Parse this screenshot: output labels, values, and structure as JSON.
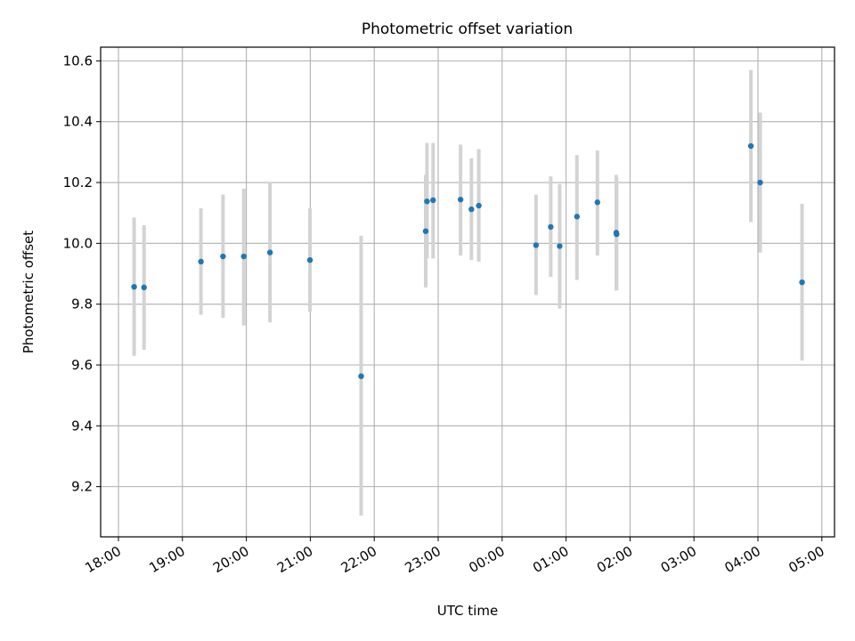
{
  "chart_data": {
    "type": "scatter",
    "title": "Photometric offset variation",
    "xlabel": "UTC time",
    "ylabel": "Photometric offset",
    "x_unit": "UTC hours after 18:00",
    "xlim": [
      -0.25,
      11.0
    ],
    "ylim": [
      9.035,
      10.645
    ],
    "grid": true,
    "x_ticks": [
      {
        "label": "18:00",
        "value": 0
      },
      {
        "label": "19:00",
        "value": 1
      },
      {
        "label": "20:00",
        "value": 2
      },
      {
        "label": "21:00",
        "value": 3
      },
      {
        "label": "22:00",
        "value": 4
      },
      {
        "label": "23:00",
        "value": 5
      },
      {
        "label": "00:00",
        "value": 6
      },
      {
        "label": "01:00",
        "value": 7
      },
      {
        "label": "02:00",
        "value": 8
      },
      {
        "label": "03:00",
        "value": 9
      },
      {
        "label": "04:00",
        "value": 10
      },
      {
        "label": "05:00",
        "value": 11
      }
    ],
    "y_ticks": [
      {
        "label": "9.2",
        "value": 9.2
      },
      {
        "label": "9.4",
        "value": 9.4
      },
      {
        "label": "9.6",
        "value": 9.6
      },
      {
        "label": "9.8",
        "value": 9.8
      },
      {
        "label": "10.0",
        "value": 10.0
      },
      {
        "label": "10.2",
        "value": 10.2
      },
      {
        "label": "10.4",
        "value": 10.4
      },
      {
        "label": "10.6",
        "value": 10.6
      }
    ],
    "point_color": "#1f77b4",
    "errorbar_color": "#d3d3d3",
    "points": [
      {
        "time": "18:15",
        "x": 0.245,
        "y": 9.857,
        "y_low": 9.63,
        "y_high": 10.085
      },
      {
        "time": "18:24",
        "x": 0.4,
        "y": 9.855,
        "y_low": 9.65,
        "y_high": 10.06
      },
      {
        "time": "19:18",
        "x": 1.29,
        "y": 9.94,
        "y_low": 9.765,
        "y_high": 10.115
      },
      {
        "time": "19:38",
        "x": 1.635,
        "y": 9.957,
        "y_low": 9.755,
        "y_high": 10.16
      },
      {
        "time": "19:58",
        "x": 1.96,
        "y": 9.957,
        "y_low": 9.73,
        "y_high": 10.18
      },
      {
        "time": "20:22",
        "x": 2.37,
        "y": 9.97,
        "y_low": 9.74,
        "y_high": 10.2
      },
      {
        "time": "21:00",
        "x": 2.995,
        "y": 9.945,
        "y_low": 9.775,
        "y_high": 10.115
      },
      {
        "time": "21:48",
        "x": 3.795,
        "y": 9.563,
        "y_low": 9.105,
        "y_high": 10.025
      },
      {
        "time": "22:48",
        "x": 4.805,
        "y": 10.04,
        "y_low": 9.855,
        "y_high": 10.225
      },
      {
        "time": "22:50",
        "x": 4.825,
        "y": 10.138,
        "y_low": 9.95,
        "y_high": 10.33
      },
      {
        "time": "22:55",
        "x": 4.92,
        "y": 10.142,
        "y_low": 9.95,
        "y_high": 10.33
      },
      {
        "time": "23:21",
        "x": 5.35,
        "y": 10.144,
        "y_low": 9.96,
        "y_high": 10.325
      },
      {
        "time": "23:31",
        "x": 5.52,
        "y": 10.112,
        "y_low": 9.945,
        "y_high": 10.28
      },
      {
        "time": "23:38",
        "x": 5.635,
        "y": 10.124,
        "y_low": 9.94,
        "y_high": 10.31
      },
      {
        "time": "00:32",
        "x": 6.53,
        "y": 9.994,
        "y_low": 9.83,
        "y_high": 10.16
      },
      {
        "time": "00:45",
        "x": 6.76,
        "y": 10.054,
        "y_low": 9.89,
        "y_high": 10.22
      },
      {
        "time": "00:54",
        "x": 6.9,
        "y": 9.991,
        "y_low": 9.785,
        "y_high": 10.195
      },
      {
        "time": "01:10",
        "x": 7.17,
        "y": 10.088,
        "y_low": 9.88,
        "y_high": 10.29
      },
      {
        "time": "01:30",
        "x": 7.49,
        "y": 10.135,
        "y_low": 9.96,
        "y_high": 10.305
      },
      {
        "time": "01:47",
        "x": 7.785,
        "y": 10.035,
        "y_low": 9.845,
        "y_high": 10.225
      },
      {
        "time": "01:47",
        "x": 7.79,
        "y": 10.03,
        "y_low": 9.845,
        "y_high": 10.215
      },
      {
        "time": "03:53",
        "x": 9.89,
        "y": 10.32,
        "y_low": 10.07,
        "y_high": 10.57
      },
      {
        "time": "04:02",
        "x": 10.035,
        "y": 10.2,
        "y_low": 9.97,
        "y_high": 10.43
      },
      {
        "time": "04:41",
        "x": 10.69,
        "y": 9.872,
        "y_low": 9.615,
        "y_high": 10.13
      }
    ]
  }
}
